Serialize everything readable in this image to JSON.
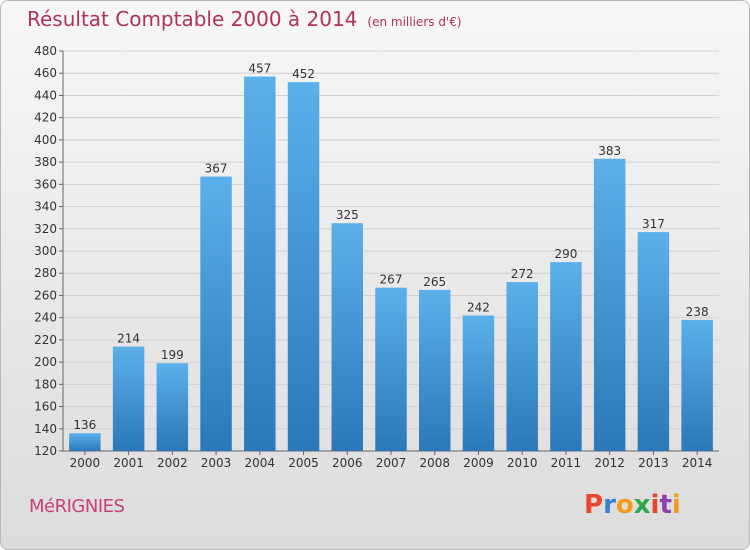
{
  "header": {
    "title": "Résultat Comptable 2000 à 2014",
    "unit": "(en milliers d'€)"
  },
  "footer": {
    "commune": "MéRIGNIES",
    "brand": "Proxiti",
    "brand_colors": [
      "#e8462b",
      "#3a7fd0",
      "#f29b1d",
      "#2da84a",
      "#e8462b",
      "#8d3fae",
      "#f29b1d"
    ]
  },
  "chart_data": {
    "type": "bar",
    "categories": [
      "2000",
      "2001",
      "2002",
      "2003",
      "2004",
      "2005",
      "2006",
      "2007",
      "2008",
      "2009",
      "2010",
      "2011",
      "2012",
      "2013",
      "2014"
    ],
    "values": [
      136,
      214,
      199,
      367,
      457,
      452,
      325,
      267,
      265,
      242,
      272,
      290,
      383,
      317,
      238
    ],
    "data_labels": [
      "136",
      "214",
      "199",
      "367",
      "457",
      "452",
      "325",
      "267",
      "265",
      "242",
      "272",
      "290",
      "383",
      "317",
      "238"
    ],
    "ylim": [
      120,
      480
    ],
    "yticks": [
      120,
      140,
      160,
      180,
      200,
      220,
      240,
      260,
      280,
      300,
      320,
      340,
      360,
      380,
      400,
      420,
      440,
      460,
      480
    ],
    "grid": true,
    "bar_color_top": "#5bb0ea",
    "bar_color_bottom": "#2a78b8"
  }
}
